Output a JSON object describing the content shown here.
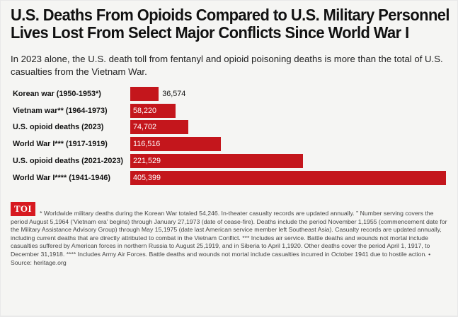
{
  "header": {
    "title_line1": "U.S. Deaths From Opioids Compared to U.S. Military Personnel",
    "title_line2": "Lives Lost From Select Major Conflicts Since World War I",
    "subtitle": "In 2023 alone, the U.S. death toll from fentanyl and opioid poisoning deaths is more than the total of U.S. casualties from the Vietnam War."
  },
  "chart_data": {
    "type": "bar",
    "orientation": "horizontal",
    "categories": [
      "Korean war (1950-1953*)",
      "Vietnam war** (1964-1973)",
      "U.S. opioid deaths (2023)",
      "World War I*** (1917-1919)",
      "U.S. opioid deaths (2021-2023)",
      "World War I**** (1941-1946)"
    ],
    "values": [
      36574,
      58220,
      74702,
      116516,
      221529,
      405399
    ],
    "value_labels": [
      "36,574",
      "58,220",
      "74,702",
      "116,516",
      "221,529",
      "405,399"
    ],
    "bar_color": "#c4161c",
    "xlim": [
      0,
      405399
    ],
    "grid": false,
    "legend": "none"
  },
  "footer": {
    "logo_text": "TOI",
    "logo_color": "#d71920",
    "footnote": "* Worldwide military deaths during the Korean War totaled 54,246. In-theater casualty records are updated annually. \" Number serving covers the period August 5,1964 ('Vietnam era' begins) through January 27,1973 (date of cease-fire). Deaths include the period November 1,1955 (commencement date for the Military Assistance Advisory Group) through May 15,1975 (date last American service member left Southeast Asia). Casualty records are updated annually, including current deaths that are directly attributed to combat in the Vietnam Conflict. *** Includes air service. Battle deaths and wounds not mortal include casualties suffered by American forces in northern Russia to August 25,1919, and in Siberia to April 1,1920. Other deaths cover the period April 1, 1917, to December 31,1918. **** Includes Army Air Forces. Battle deaths and wounds not mortal include casualties incurred in October 1941 due to hostile action. • Source: heritage.org"
  }
}
